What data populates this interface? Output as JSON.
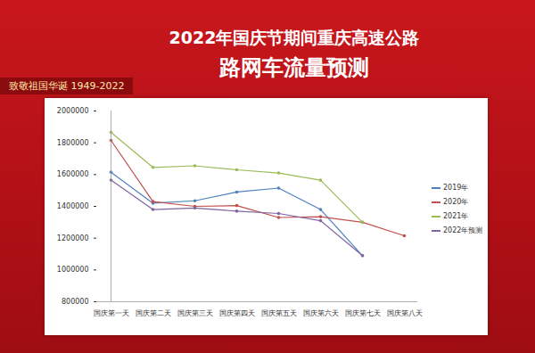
{
  "chart_data": {
    "type": "line",
    "title": "2022年国庆节期间重庆高速公路",
    "subtitle": "路网车流量预测",
    "annotations": [
      "致敬祖国华诞 1949-2022"
    ],
    "categories": [
      "国庆第一天",
      "国庆第二天",
      "国庆第三天",
      "国庆第四天",
      "国庆第五天",
      "国庆第六天",
      "国庆第七天",
      "国庆第八天"
    ],
    "series": [
      {
        "name": "2019年",
        "color": "#4f81bd",
        "values": [
          1615000,
          1420000,
          1435000,
          1490000,
          1515000,
          1380000,
          1090000,
          null
        ]
      },
      {
        "name": "2020年",
        "color": "#c0504d",
        "values": [
          1815000,
          1430000,
          1400000,
          1405000,
          1330000,
          1335000,
          1300000,
          1215000
        ]
      },
      {
        "name": "2021年",
        "color": "#9bbb59",
        "values": [
          1865000,
          1645000,
          1655000,
          1630000,
          1610000,
          1565000,
          1300000,
          null
        ]
      },
      {
        "name": "2022年预测",
        "color": "#8064a2",
        "values": [
          1565000,
          1380000,
          1390000,
          1370000,
          1355000,
          1310000,
          1090000,
          null
        ]
      }
    ],
    "ylim": [
      800000,
      2000000
    ],
    "yticks": [
      800000,
      1000000,
      1200000,
      1400000,
      1600000,
      1800000,
      2000000
    ],
    "grid": false,
    "legend": "right",
    "marker": "circle"
  }
}
